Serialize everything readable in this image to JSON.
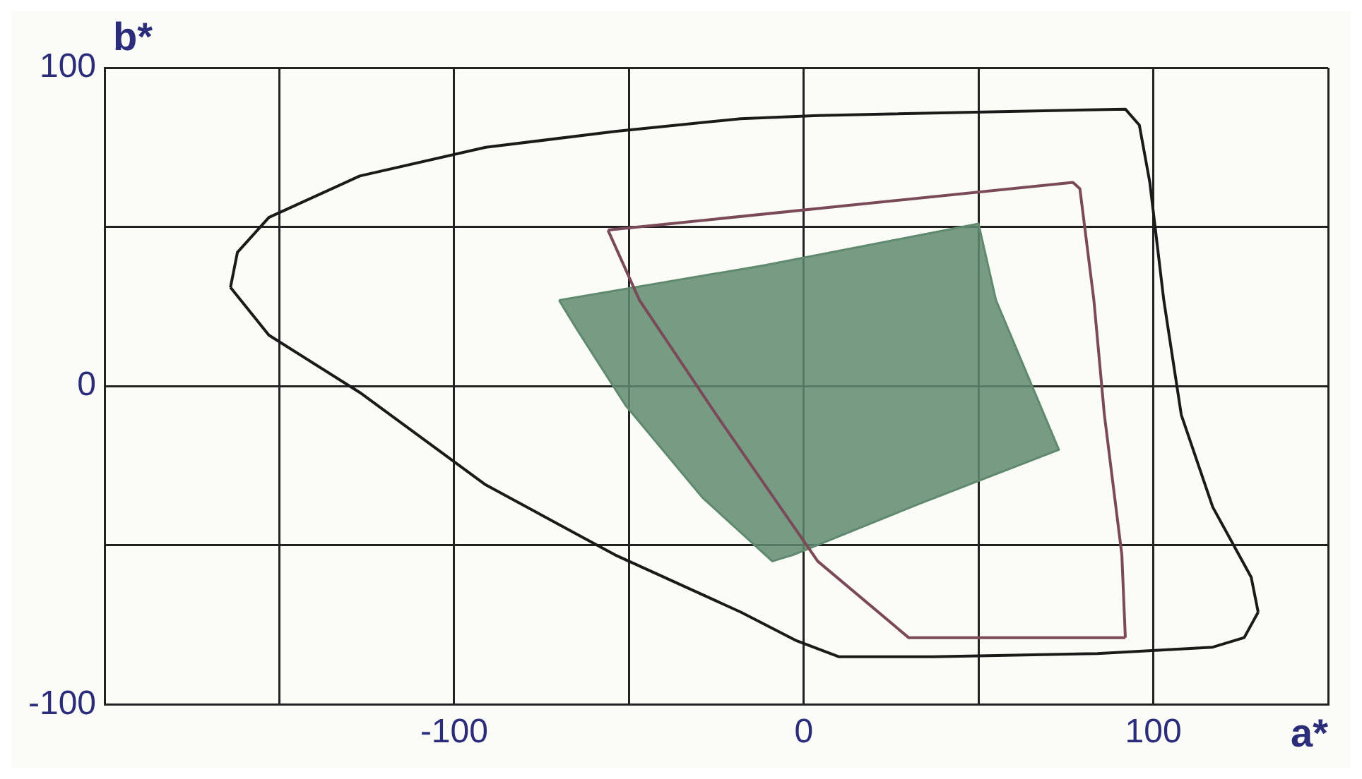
{
  "chart_data": {
    "type": "line",
    "xlabel": "a*",
    "ylabel": "b*",
    "xlim": [
      -200,
      150
    ],
    "ylim": [
      -100,
      100
    ],
    "xticks": [
      {
        "value": -200,
        "label": null
      },
      {
        "value": -150,
        "label": null
      },
      -100,
      {
        "value": -50,
        "label": null
      },
      0,
      {
        "value": 50,
        "label": null
      },
      100,
      {
        "value": 150,
        "label": null
      }
    ],
    "yticks": [
      -100,
      {
        "value": -50,
        "label": null
      },
      0,
      {
        "value": 50,
        "label": null
      },
      100
    ],
    "grid": true,
    "legend": false,
    "marker": "none",
    "series": [
      {
        "type": "line",
        "color": "#1a1a1a",
        "x": [
          -164,
          -162,
          -153,
          -127,
          -91,
          -54,
          -18,
          4,
          92,
          96,
          99,
          103,
          108,
          117,
          128,
          130
        ],
        "values": [
          31,
          42,
          53,
          66,
          75,
          80,
          84,
          85,
          87,
          82,
          64,
          27,
          -9,
          -38,
          -60,
          -71
        ]
      },
      {
        "type": "line",
        "color": "#1a1a1a",
        "x": [
          -164,
          -153,
          -127,
          -91,
          -54,
          -18,
          -2,
          10,
          37,
          84,
          117,
          126,
          130
        ],
        "values": [
          31,
          16,
          -2,
          -31,
          -53,
          -71,
          -80,
          -85,
          -85,
          -84,
          -82,
          -79,
          -71
        ]
      },
      {
        "type": "line",
        "color": "#7a4a5a",
        "x": [
          -56,
          77,
          79,
          83,
          86,
          91,
          92
        ],
        "values": [
          49,
          64,
          62,
          27,
          -9,
          -53,
          -79
        ]
      },
      {
        "type": "line",
        "color": "#7a4a5a",
        "x": [
          -56,
          -47,
          -25,
          4,
          30,
          92
        ],
        "values": [
          49,
          27,
          -9,
          -55,
          -79,
          -79
        ]
      },
      {
        "type": "area",
        "color": "#5f8a6e",
        "x": [
          -70,
          -11,
          50,
          55,
          73,
          33,
          -3,
          -9,
          -29,
          -51,
          -65,
          -70
        ],
        "values": [
          27,
          38,
          51,
          27,
          -20,
          -37,
          -53,
          -55,
          -35,
          -6,
          18,
          27
        ]
      }
    ]
  }
}
